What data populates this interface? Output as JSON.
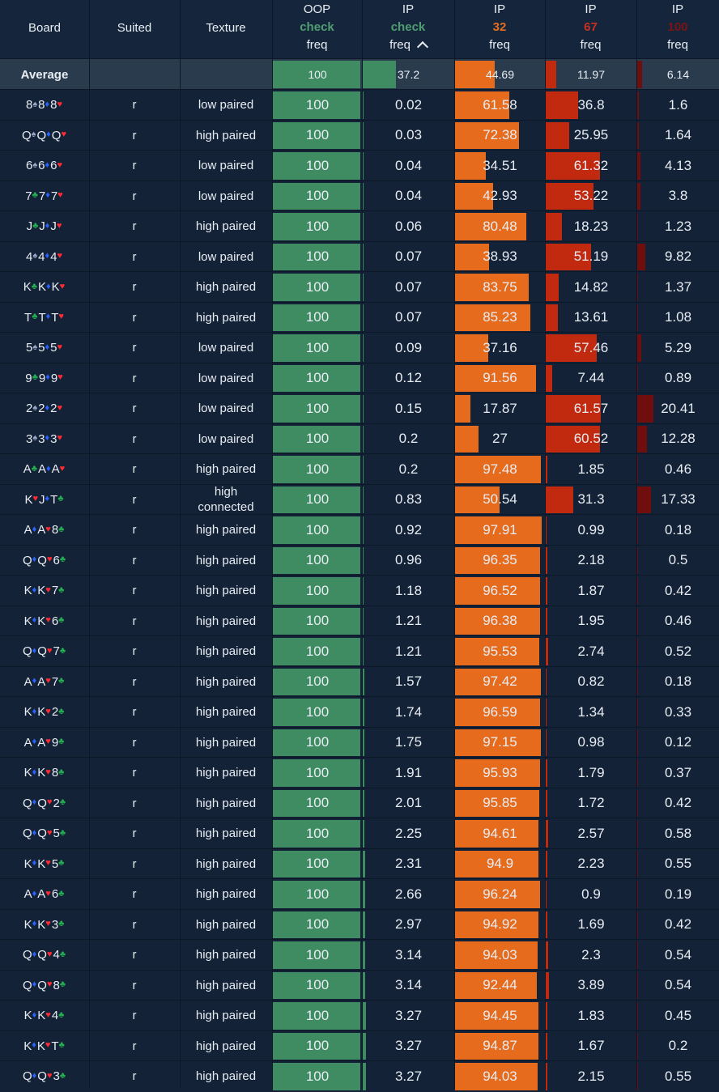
{
  "headers": {
    "board": "Board",
    "suited": "Suited",
    "texture": "Texture",
    "oop": {
      "line1": "OOP",
      "line2": "check",
      "line3": "freq"
    },
    "ip_check": {
      "line1": "IP",
      "line2": "check",
      "line3": "freq"
    },
    "ip_32": {
      "line1": "IP",
      "line2": "32",
      "line3": "freq"
    },
    "ip_67": {
      "line1": "IP",
      "line2": "67",
      "line3": "freq"
    },
    "ip_100": {
      "line1": "IP",
      "line2": "100",
      "line3": "freq"
    }
  },
  "average": {
    "label": "Average",
    "oop": "100",
    "ip_check": "37.2",
    "ip_32": "44.69",
    "ip_67": "11.97",
    "ip_100": "6.14"
  },
  "suit_icons": {
    "s": "spade-icon",
    "h": "heart-icon",
    "d": "diamond-icon",
    "c": "club-icon"
  },
  "colors": {
    "check": "#3f8c63",
    "bet32": "#e66b1d",
    "bet67": "#c22a10",
    "bet100": "#700d0d",
    "background": "#132237"
  },
  "rows": [
    {
      "board": [
        [
          "8",
          "s"
        ],
        [
          "8",
          "d"
        ],
        [
          "8",
          "h"
        ]
      ],
      "suited": "r",
      "texture": "low paired",
      "oop": "100",
      "ip_check": "0.02",
      "ip_32": "61.58",
      "ip_67": "36.8",
      "ip_100": "1.6"
    },
    {
      "board": [
        [
          "Q",
          "s"
        ],
        [
          "Q",
          "d"
        ],
        [
          "Q",
          "h"
        ]
      ],
      "suited": "r",
      "texture": "high paired",
      "oop": "100",
      "ip_check": "0.03",
      "ip_32": "72.38",
      "ip_67": "25.95",
      "ip_100": "1.64"
    },
    {
      "board": [
        [
          "6",
          "s"
        ],
        [
          "6",
          "d"
        ],
        [
          "6",
          "h"
        ]
      ],
      "suited": "r",
      "texture": "low paired",
      "oop": "100",
      "ip_check": "0.04",
      "ip_32": "34.51",
      "ip_67": "61.32",
      "ip_100": "4.13"
    },
    {
      "board": [
        [
          "7",
          "c"
        ],
        [
          "7",
          "d"
        ],
        [
          "7",
          "h"
        ]
      ],
      "suited": "r",
      "texture": "low paired",
      "oop": "100",
      "ip_check": "0.04",
      "ip_32": "42.93",
      "ip_67": "53.22",
      "ip_100": "3.8"
    },
    {
      "board": [
        [
          "J",
          "c"
        ],
        [
          "J",
          "d"
        ],
        [
          "J",
          "h"
        ]
      ],
      "suited": "r",
      "texture": "high paired",
      "oop": "100",
      "ip_check": "0.06",
      "ip_32": "80.48",
      "ip_67": "18.23",
      "ip_100": "1.23"
    },
    {
      "board": [
        [
          "4",
          "s"
        ],
        [
          "4",
          "d"
        ],
        [
          "4",
          "h"
        ]
      ],
      "suited": "r",
      "texture": "low paired",
      "oop": "100",
      "ip_check": "0.07",
      "ip_32": "38.93",
      "ip_67": "51.19",
      "ip_100": "9.82"
    },
    {
      "board": [
        [
          "K",
          "c"
        ],
        [
          "K",
          "d"
        ],
        [
          "K",
          "h"
        ]
      ],
      "suited": "r",
      "texture": "high paired",
      "oop": "100",
      "ip_check": "0.07",
      "ip_32": "83.75",
      "ip_67": "14.82",
      "ip_100": "1.37"
    },
    {
      "board": [
        [
          "T",
          "c"
        ],
        [
          "T",
          "d"
        ],
        [
          "T",
          "h"
        ]
      ],
      "suited": "r",
      "texture": "high paired",
      "oop": "100",
      "ip_check": "0.07",
      "ip_32": "85.23",
      "ip_67": "13.61",
      "ip_100": "1.08"
    },
    {
      "board": [
        [
          "5",
          "s"
        ],
        [
          "5",
          "d"
        ],
        [
          "5",
          "h"
        ]
      ],
      "suited": "r",
      "texture": "low paired",
      "oop": "100",
      "ip_check": "0.09",
      "ip_32": "37.16",
      "ip_67": "57.46",
      "ip_100": "5.29"
    },
    {
      "board": [
        [
          "9",
          "c"
        ],
        [
          "9",
          "d"
        ],
        [
          "9",
          "h"
        ]
      ],
      "suited": "r",
      "texture": "low paired",
      "oop": "100",
      "ip_check": "0.12",
      "ip_32": "91.56",
      "ip_67": "7.44",
      "ip_100": "0.89"
    },
    {
      "board": [
        [
          "2",
          "s"
        ],
        [
          "2",
          "d"
        ],
        [
          "2",
          "h"
        ]
      ],
      "suited": "r",
      "texture": "low paired",
      "oop": "100",
      "ip_check": "0.15",
      "ip_32": "17.87",
      "ip_67": "61.57",
      "ip_100": "20.41"
    },
    {
      "board": [
        [
          "3",
          "s"
        ],
        [
          "3",
          "d"
        ],
        [
          "3",
          "h"
        ]
      ],
      "suited": "r",
      "texture": "low paired",
      "oop": "100",
      "ip_check": "0.2",
      "ip_32": "27",
      "ip_67": "60.52",
      "ip_100": "12.28"
    },
    {
      "board": [
        [
          "A",
          "c"
        ],
        [
          "A",
          "d"
        ],
        [
          "A",
          "h"
        ]
      ],
      "suited": "r",
      "texture": "high paired",
      "oop": "100",
      "ip_check": "0.2",
      "ip_32": "97.48",
      "ip_67": "1.85",
      "ip_100": "0.46"
    },
    {
      "board": [
        [
          "K",
          "h"
        ],
        [
          "J",
          "d"
        ],
        [
          "T",
          "c"
        ]
      ],
      "suited": "r",
      "texture": "high connected",
      "oop": "100",
      "ip_check": "0.83",
      "ip_32": "50.54",
      "ip_67": "31.3",
      "ip_100": "17.33"
    },
    {
      "board": [
        [
          "A",
          "d"
        ],
        [
          "A",
          "h"
        ],
        [
          "8",
          "c"
        ]
      ],
      "suited": "r",
      "texture": "high paired",
      "oop": "100",
      "ip_check": "0.92",
      "ip_32": "97.91",
      "ip_67": "0.99",
      "ip_100": "0.18"
    },
    {
      "board": [
        [
          "Q",
          "d"
        ],
        [
          "Q",
          "h"
        ],
        [
          "6",
          "c"
        ]
      ],
      "suited": "r",
      "texture": "high paired",
      "oop": "100",
      "ip_check": "0.96",
      "ip_32": "96.35",
      "ip_67": "2.18",
      "ip_100": "0.5"
    },
    {
      "board": [
        [
          "K",
          "d"
        ],
        [
          "K",
          "h"
        ],
        [
          "7",
          "c"
        ]
      ],
      "suited": "r",
      "texture": "high paired",
      "oop": "100",
      "ip_check": "1.18",
      "ip_32": "96.52",
      "ip_67": "1.87",
      "ip_100": "0.42"
    },
    {
      "board": [
        [
          "K",
          "d"
        ],
        [
          "K",
          "h"
        ],
        [
          "6",
          "c"
        ]
      ],
      "suited": "r",
      "texture": "high paired",
      "oop": "100",
      "ip_check": "1.21",
      "ip_32": "96.38",
      "ip_67": "1.95",
      "ip_100": "0.46"
    },
    {
      "board": [
        [
          "Q",
          "d"
        ],
        [
          "Q",
          "h"
        ],
        [
          "7",
          "c"
        ]
      ],
      "suited": "r",
      "texture": "high paired",
      "oop": "100",
      "ip_check": "1.21",
      "ip_32": "95.53",
      "ip_67": "2.74",
      "ip_100": "0.52"
    },
    {
      "board": [
        [
          "A",
          "d"
        ],
        [
          "A",
          "h"
        ],
        [
          "7",
          "c"
        ]
      ],
      "suited": "r",
      "texture": "high paired",
      "oop": "100",
      "ip_check": "1.57",
      "ip_32": "97.42",
      "ip_67": "0.82",
      "ip_100": "0.18"
    },
    {
      "board": [
        [
          "K",
          "d"
        ],
        [
          "K",
          "h"
        ],
        [
          "2",
          "c"
        ]
      ],
      "suited": "r",
      "texture": "high paired",
      "oop": "100",
      "ip_check": "1.74",
      "ip_32": "96.59",
      "ip_67": "1.34",
      "ip_100": "0.33"
    },
    {
      "board": [
        [
          "A",
          "d"
        ],
        [
          "A",
          "h"
        ],
        [
          "9",
          "c"
        ]
      ],
      "suited": "r",
      "texture": "high paired",
      "oop": "100",
      "ip_check": "1.75",
      "ip_32": "97.15",
      "ip_67": "0.98",
      "ip_100": "0.12"
    },
    {
      "board": [
        [
          "K",
          "d"
        ],
        [
          "K",
          "h"
        ],
        [
          "8",
          "c"
        ]
      ],
      "suited": "r",
      "texture": "high paired",
      "oop": "100",
      "ip_check": "1.91",
      "ip_32": "95.93",
      "ip_67": "1.79",
      "ip_100": "0.37"
    },
    {
      "board": [
        [
          "Q",
          "d"
        ],
        [
          "Q",
          "h"
        ],
        [
          "2",
          "c"
        ]
      ],
      "suited": "r",
      "texture": "high paired",
      "oop": "100",
      "ip_check": "2.01",
      "ip_32": "95.85",
      "ip_67": "1.72",
      "ip_100": "0.42"
    },
    {
      "board": [
        [
          "Q",
          "d"
        ],
        [
          "Q",
          "h"
        ],
        [
          "5",
          "c"
        ]
      ],
      "suited": "r",
      "texture": "high paired",
      "oop": "100",
      "ip_check": "2.25",
      "ip_32": "94.61",
      "ip_67": "2.57",
      "ip_100": "0.58"
    },
    {
      "board": [
        [
          "K",
          "d"
        ],
        [
          "K",
          "h"
        ],
        [
          "5",
          "c"
        ]
      ],
      "suited": "r",
      "texture": "high paired",
      "oop": "100",
      "ip_check": "2.31",
      "ip_32": "94.9",
      "ip_67": "2.23",
      "ip_100": "0.55"
    },
    {
      "board": [
        [
          "A",
          "d"
        ],
        [
          "A",
          "h"
        ],
        [
          "6",
          "c"
        ]
      ],
      "suited": "r",
      "texture": "high paired",
      "oop": "100",
      "ip_check": "2.66",
      "ip_32": "96.24",
      "ip_67": "0.9",
      "ip_100": "0.19"
    },
    {
      "board": [
        [
          "K",
          "d"
        ],
        [
          "K",
          "h"
        ],
        [
          "3",
          "c"
        ]
      ],
      "suited": "r",
      "texture": "high paired",
      "oop": "100",
      "ip_check": "2.97",
      "ip_32": "94.92",
      "ip_67": "1.69",
      "ip_100": "0.42"
    },
    {
      "board": [
        [
          "Q",
          "d"
        ],
        [
          "Q",
          "h"
        ],
        [
          "4",
          "c"
        ]
      ],
      "suited": "r",
      "texture": "high paired",
      "oop": "100",
      "ip_check": "3.14",
      "ip_32": "94.03",
      "ip_67": "2.3",
      "ip_100": "0.54"
    },
    {
      "board": [
        [
          "Q",
          "d"
        ],
        [
          "Q",
          "h"
        ],
        [
          "8",
          "c"
        ]
      ],
      "suited": "r",
      "texture": "high paired",
      "oop": "100",
      "ip_check": "3.14",
      "ip_32": "92.44",
      "ip_67": "3.89",
      "ip_100": "0.54"
    },
    {
      "board": [
        [
          "K",
          "d"
        ],
        [
          "K",
          "h"
        ],
        [
          "4",
          "c"
        ]
      ],
      "suited": "r",
      "texture": "high paired",
      "oop": "100",
      "ip_check": "3.27",
      "ip_32": "94.45",
      "ip_67": "1.83",
      "ip_100": "0.45"
    },
    {
      "board": [
        [
          "K",
          "d"
        ],
        [
          "K",
          "h"
        ],
        [
          "T",
          "c"
        ]
      ],
      "suited": "r",
      "texture": "high paired",
      "oop": "100",
      "ip_check": "3.27",
      "ip_32": "94.87",
      "ip_67": "1.67",
      "ip_100": "0.2"
    },
    {
      "board": [
        [
          "Q",
          "d"
        ],
        [
          "Q",
          "h"
        ],
        [
          "3",
          "c"
        ]
      ],
      "suited": "r",
      "texture": "high paired",
      "oop": "100",
      "ip_check": "3.27",
      "ip_32": "94.03",
      "ip_67": "2.15",
      "ip_100": "0.55"
    }
  ]
}
